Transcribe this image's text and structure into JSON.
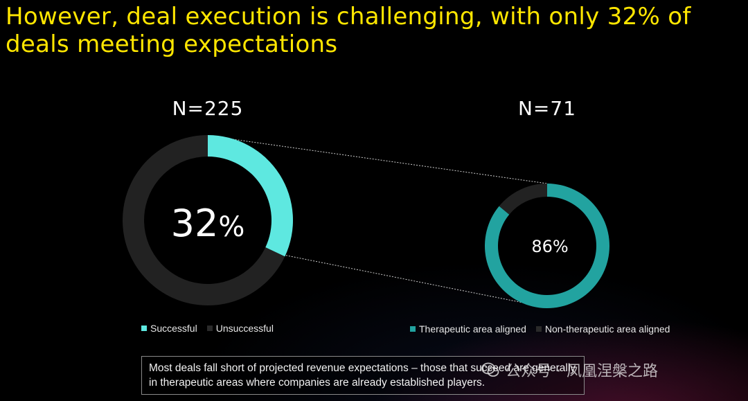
{
  "title": "However, deal execution is challenging, with only 32% of deals meeting expectations",
  "callout": "Most deals fall short of projected revenue expectations – those that succeed are generally in therapeutic areas where companies are already established players.",
  "watermark": {
    "account_label": "公众号 ·",
    "name": "凤凰涅槃之路",
    "icon": "wechat-icon"
  },
  "colors": {
    "background": "#000000",
    "title": "#ffe600",
    "successful": "#5ee8e0",
    "unsuccessful": "#222222",
    "therapeutic": "#22a3a0",
    "non_therapeutic": "#222222"
  },
  "chart_data": [
    {
      "type": "pie",
      "variant": "donut",
      "title": "N=225",
      "center_label": "32%",
      "center_number": "32",
      "center_unit": "%",
      "slices": [
        {
          "name": "Successful",
          "value": 32
        },
        {
          "name": "Unsuccessful",
          "value": 68
        }
      ],
      "legend": [
        "Successful",
        "Unsuccessful"
      ],
      "legend_position": "bottom"
    },
    {
      "type": "pie",
      "variant": "donut",
      "title": "N=71",
      "center_label": "86%",
      "slices": [
        {
          "name": "Therapeutic area aligned",
          "value": 86
        },
        {
          "name": "Non-therapeutic area aligned",
          "value": 14
        }
      ],
      "legend": [
        "Therapeutic area aligned",
        "Non-therapeutic area aligned"
      ],
      "legend_position": "bottom"
    }
  ]
}
